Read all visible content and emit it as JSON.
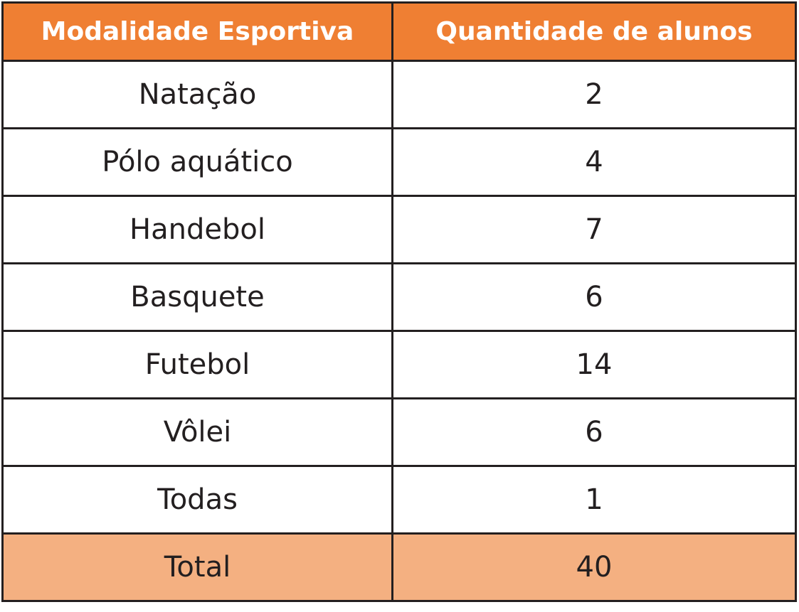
{
  "table": {
    "header": [
      "Modalidade Esportiva",
      "Quantidade de alunos"
    ],
    "rows": [
      [
        "Natação",
        "2"
      ],
      [
        "Pólo aquático",
        "4"
      ],
      [
        "Handebol",
        "7"
      ],
      [
        "Basquete",
        "6"
      ],
      [
        "Futebol",
        "14"
      ],
      [
        "Vôlei",
        "6"
      ],
      [
        "Todas",
        "1"
      ]
    ],
    "total": [
      "Total",
      "40"
    ]
  }
}
